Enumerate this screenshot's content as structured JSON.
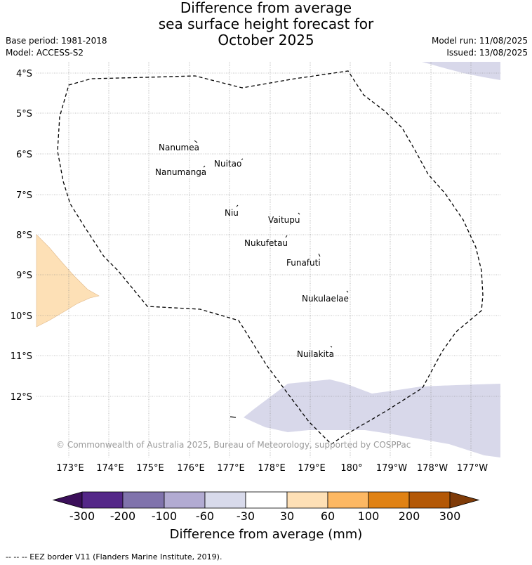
{
  "title": {
    "line1": "Difference from average",
    "line2": "sea surface height forecast for",
    "line3": "October 2025"
  },
  "meta": {
    "base_period": "Base period: 1981-2018",
    "model": "Model: ACCESS-S2",
    "model_run": "Model run: 11/08/2025",
    "issued": "Issued: 13/08/2025"
  },
  "map": {
    "lat_labels": [
      "4°S",
      "5°S",
      "6°S",
      "7°S",
      "8°S",
      "9°S",
      "10°S",
      "11°S",
      "12°S"
    ],
    "lon_labels": [
      "173°E",
      "174°E",
      "175°E",
      "176°E",
      "177°E",
      "178°E",
      "179°E",
      "180°",
      "179°W",
      "178°W",
      "177°W"
    ],
    "islands": [
      "Nanumea",
      "Nuitao",
      "Nanumanga",
      "Niu",
      "Vaitupu",
      "Nukufetau",
      "Funafuti",
      "Nukulaelae",
      "Nuilakita"
    ],
    "copyright": "© Commonwealth of Australia 2025, Bureau of Meteorology, supported by COSPPac",
    "colors": {
      "positive_30_60": "#fde0b6",
      "negative_60_30": "#d8d8ea",
      "eez_border": "#000000",
      "grid": "#888888"
    }
  },
  "colorbar": {
    "tick_labels": [
      "-300",
      "-200",
      "-100",
      "-60",
      "-30",
      "30",
      "60",
      "100",
      "200",
      "300"
    ],
    "colors": [
      "#3b0f5a",
      "#542788",
      "#8073ac",
      "#b2abd2",
      "#d8daeb",
      "#ffffff",
      "#fee0b6",
      "#fdb863",
      "#e08214",
      "#b35806",
      "#7f3b08"
    ],
    "title": "Difference from average (mm)"
  },
  "footnote": "--  --  -- EEZ border V11 (Flanders Marine Institute, 2019)."
}
